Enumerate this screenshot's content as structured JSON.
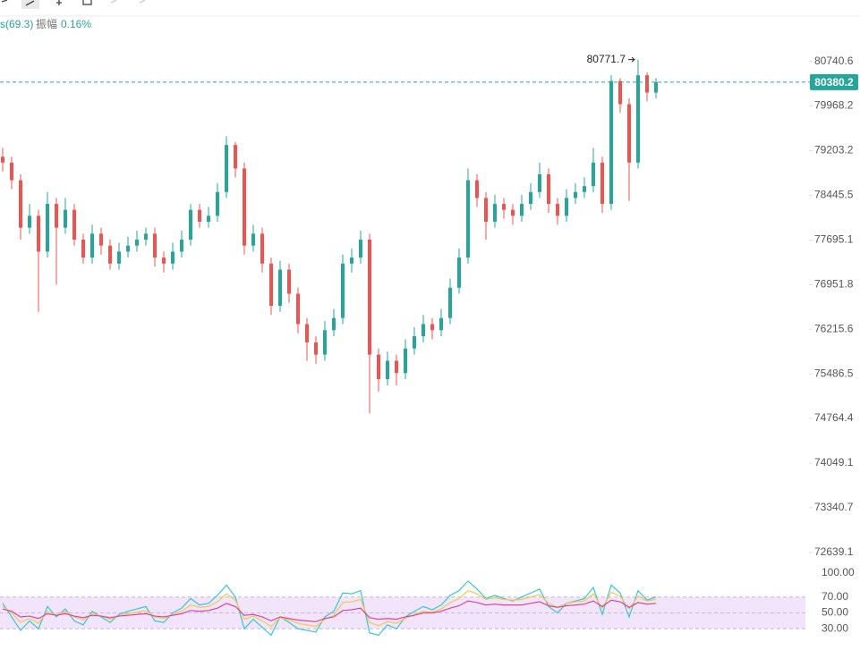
{
  "header": {
    "indicator": "s(69.3)",
    "amplitude_label": "振幅",
    "amplitude": "0.16%"
  },
  "chart_data": [
    {
      "type": "candlestick",
      "log_scale": true,
      "up_color": "#26a69a",
      "down_color": "#ef5350",
      "ylim": [
        72400,
        81500
      ],
      "yticks": [
        {
          "value": 80740.6,
          "label": "80740.6"
        },
        {
          "value": 79968.2,
          "label": "79968.2"
        },
        {
          "value": 79203.2,
          "label": "79203.2"
        },
        {
          "value": 78445.5,
          "label": "78445.5"
        },
        {
          "value": 77695.1,
          "label": "77695.1"
        },
        {
          "value": 76951.8,
          "label": "76951.8"
        },
        {
          "value": 76215.6,
          "label": "76215.6"
        },
        {
          "value": 75486.5,
          "label": "75486.5"
        },
        {
          "value": 74764.4,
          "label": "74764.4"
        },
        {
          "value": 74049.1,
          "label": "74049.1"
        },
        {
          "value": 73340.7,
          "label": "73340.7"
        },
        {
          "value": 72639.1,
          "label": "72639.1"
        }
      ],
      "open": [
        79100,
        79000,
        78700,
        77900,
        78100,
        77500,
        78300,
        77900,
        78200,
        77700,
        77400,
        77800,
        77600,
        77300,
        77500,
        77600,
        77700,
        77800,
        77400,
        77300,
        77500,
        77700,
        78200,
        78000,
        78100,
        78500,
        79300,
        78900,
        77600,
        77800,
        77300,
        76600,
        77200,
        76800,
        76300,
        76000,
        75800,
        76200,
        76400,
        77300,
        77400,
        77700,
        75800,
        75400,
        75700,
        75500,
        75900,
        76100,
        76300,
        76200,
        76400,
        76900,
        77400,
        78700,
        78400,
        78000,
        78300,
        78200,
        78100,
        78300,
        78500,
        78800,
        78300,
        78100,
        78400,
        78500,
        78600,
        79000,
        78300,
        80400,
        80000,
        79000,
        80500,
        80200
      ],
      "high": [
        79250,
        79100,
        78800,
        78300,
        78200,
        78500,
        78400,
        78400,
        78300,
        77800,
        77950,
        77900,
        77700,
        77650,
        77750,
        77850,
        77900,
        77900,
        77500,
        77650,
        77850,
        78300,
        78300,
        78250,
        78650,
        79450,
        79350,
        79000,
        77950,
        77900,
        77400,
        77350,
        77300,
        76900,
        76400,
        76100,
        76350,
        76550,
        77450,
        77550,
        77850,
        77800,
        75900,
        75850,
        75800,
        76050,
        76250,
        76450,
        76400,
        76550,
        77050,
        77550,
        78900,
        78800,
        78500,
        78450,
        78400,
        78300,
        78450,
        78650,
        79000,
        78900,
        78400,
        78550,
        78650,
        78750,
        79250,
        79100,
        80500,
        80450,
        80100,
        80771.7,
        80550,
        80450
      ],
      "low": [
        78850,
        78550,
        77700,
        77800,
        76500,
        77400,
        76950,
        77800,
        77600,
        77300,
        77300,
        77450,
        77200,
        77200,
        77400,
        77500,
        77600,
        77250,
        77150,
        77200,
        77400,
        77600,
        77900,
        77900,
        78000,
        78400,
        78750,
        77450,
        77500,
        77150,
        76450,
        76500,
        76650,
        76150,
        75700,
        75650,
        75700,
        76100,
        76300,
        77150,
        77300,
        74850,
        75200,
        75300,
        75300,
        75400,
        75800,
        76000,
        76050,
        76100,
        76300,
        76800,
        77300,
        78250,
        77700,
        77900,
        78050,
        77950,
        78000,
        78200,
        78400,
        78150,
        77950,
        78000,
        78300,
        78400,
        78500,
        78150,
        78200,
        79850,
        78350,
        78900,
        80050,
        80100
      ],
      "close": [
        79000,
        78700,
        77900,
        78100,
        77500,
        78300,
        77900,
        78200,
        77700,
        77400,
        77800,
        77600,
        77300,
        77500,
        77600,
        77700,
        77800,
        77400,
        77300,
        77500,
        77700,
        78200,
        78000,
        78100,
        78500,
        79300,
        78900,
        77600,
        77800,
        77300,
        76600,
        77200,
        76800,
        76300,
        76000,
        75800,
        76200,
        76400,
        77300,
        77400,
        77700,
        75800,
        75400,
        75700,
        75500,
        75900,
        76100,
        76300,
        76200,
        76400,
        76900,
        77400,
        78700,
        78400,
        78000,
        78300,
        78200,
        78100,
        78300,
        78500,
        78800,
        78300,
        78100,
        78400,
        78500,
        78600,
        79000,
        78300,
        80400,
        80000,
        79000,
        80500,
        80200,
        80380.2
      ]
    },
    {
      "type": "line",
      "ylim": [
        0,
        100
      ],
      "band": [
        30,
        70
      ],
      "band_color": "#f1e4fb",
      "yticks": [
        {
          "value": 100,
          "label": "100.00"
        },
        {
          "value": 70,
          "label": "70.00"
        },
        {
          "value": 50,
          "label": "50.00"
        },
        {
          "value": 30,
          "label": "30.00"
        }
      ],
      "series": [
        {
          "color": "#35c9d6",
          "values": [
            62,
            45,
            28,
            40,
            30,
            58,
            45,
            55,
            40,
            35,
            52,
            45,
            38,
            48,
            52,
            55,
            58,
            40,
            38,
            50,
            56,
            68,
            60,
            62,
            72,
            85,
            70,
            30,
            42,
            32,
            22,
            45,
            38,
            30,
            28,
            26,
            45,
            52,
            75,
            74,
            78,
            25,
            22,
            35,
            30,
            45,
            52,
            58,
            54,
            60,
            72,
            78,
            90,
            80,
            68,
            72,
            68,
            65,
            70,
            75,
            80,
            58,
            50,
            62,
            65,
            68,
            82,
            48,
            85,
            75,
            45,
            78,
            66,
            70
          ]
        },
        {
          "color": "#f2c94c",
          "values": [
            58,
            50,
            38,
            43,
            37,
            52,
            47,
            52,
            45,
            41,
            49,
            46,
            42,
            46,
            49,
            51,
            53,
            45,
            43,
            48,
            52,
            60,
            57,
            58,
            64,
            74,
            66,
            42,
            46,
            40,
            33,
            44,
            41,
            37,
            35,
            33,
            42,
            47,
            63,
            64,
            67,
            38,
            34,
            39,
            37,
            43,
            48,
            52,
            51,
            55,
            63,
            68,
            78,
            74,
            67,
            69,
            67,
            66,
            67,
            70,
            73,
            62,
            57,
            62,
            64,
            65,
            74,
            56,
            76,
            71,
            55,
            71,
            65,
            67
          ]
        },
        {
          "color": "#d9479b",
          "values": [
            55,
            52,
            45,
            46,
            43,
            49,
            47,
            49,
            46,
            44,
            47,
            46,
            44,
            46,
            47,
            48,
            49,
            46,
            45,
            47,
            49,
            53,
            52,
            53,
            56,
            62,
            58,
            47,
            48,
            45,
            40,
            45,
            43,
            41,
            40,
            39,
            43,
            45,
            53,
            54,
            56,
            44,
            42,
            43,
            42,
            45,
            47,
            50,
            50,
            52,
            56,
            59,
            65,
            63,
            60,
            61,
            60,
            60,
            60,
            62,
            64,
            59,
            57,
            59,
            60,
            61,
            65,
            58,
            66,
            64,
            57,
            63,
            61,
            62
          ]
        }
      ]
    }
  ]
}
